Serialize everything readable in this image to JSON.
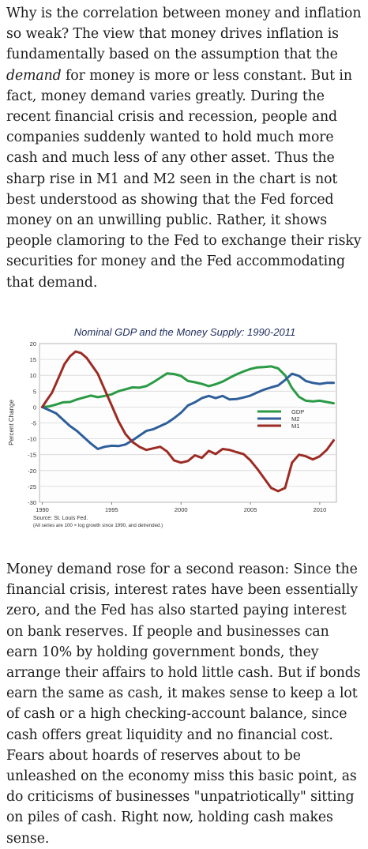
{
  "article": {
    "para1_a": "Why is the correlation between money and inflation so weak? The view that money drives inflation is fundamentally based on the assumption that the ",
    "para1_em": "demand",
    "para1_b": " for money is more or less constant. But in fact, money demand varies greatly. During the recent financial crisis and recession, people and companies suddenly wanted to hold much more cash and much less of any other asset. Thus the sharp rise in M1 and M2 seen in the chart is not best understood as showing that the Fed forced money on an unwilling public. Rather, it shows people clamoring to the Fed to exchange their risky securities for money and the Fed accommodating that demand.",
    "para2": "Money demand rose for a second reason: Since the financial crisis, interest rates have been essentially zero, and the Fed has also started paying interest on bank reserves. If people and businesses can earn 10% by holding government bonds, they arrange their affairs to hold little cash. But if bonds earn the same as cash, it makes sense to keep a lot of cash or a high checking-account balance, since cash offers great liquidity and no financial cost. Fears about hoards of reserves about to be unleashed on the economy miss this basic point, as do criticisms of businesses \"unpatriotically\" sitting on piles of cash. Right now, holding cash makes sense."
  },
  "chart_data": {
    "type": "line",
    "title": "Nominal GDP and the Money Supply: 1990-2011",
    "ylabel": "Percent Change",
    "xlabel": "",
    "source": "Source: St. Louis Fed.",
    "note": "(All series are 100 × log growth since 1990, and detrended.)",
    "xlim": [
      1989.8,
      2011.2
    ],
    "ylim": [
      -30,
      20
    ],
    "yticks": [
      "20",
      "15",
      "10",
      "5",
      "0",
      "-5",
      "-10",
      "-15",
      "-20",
      "-25",
      "-30"
    ],
    "xticks": [
      "1990",
      "1995",
      "2000",
      "2005",
      "2010"
    ],
    "grid": true,
    "legend_position": "right-center",
    "series": [
      {
        "name": "GDP",
        "color": "#2a9a45",
        "points": [
          [
            1990,
            0
          ],
          [
            1990.5,
            0.2
          ],
          [
            1991,
            0.8
          ],
          [
            1991.5,
            1.5
          ],
          [
            1992,
            1.6
          ],
          [
            1992.5,
            2.4
          ],
          [
            1993,
            3.0
          ],
          [
            1993.5,
            3.6
          ],
          [
            1994,
            3.1
          ],
          [
            1994.5,
            3.5
          ],
          [
            1995,
            4.0
          ],
          [
            1995.5,
            5.0
          ],
          [
            1996,
            5.6
          ],
          [
            1996.5,
            6.2
          ],
          [
            1997,
            6.1
          ],
          [
            1997.5,
            6.6
          ],
          [
            1998,
            7.8
          ],
          [
            1998.5,
            9.2
          ],
          [
            1999,
            10.6
          ],
          [
            1999.5,
            10.4
          ],
          [
            2000,
            9.8
          ],
          [
            2000.5,
            8.2
          ],
          [
            2001,
            7.8
          ],
          [
            2001.5,
            7.3
          ],
          [
            2002,
            6.6
          ],
          [
            2002.5,
            7.2
          ],
          [
            2003,
            8.0
          ],
          [
            2003.5,
            9.2
          ],
          [
            2004,
            10.3
          ],
          [
            2004.5,
            11.2
          ],
          [
            2005,
            12.0
          ],
          [
            2005.5,
            12.5
          ],
          [
            2006,
            12.6
          ],
          [
            2006.5,
            12.8
          ],
          [
            2007,
            12.2
          ],
          [
            2007.5,
            10.0
          ],
          [
            2008,
            6.0
          ],
          [
            2008.5,
            3.2
          ],
          [
            2009,
            2.0
          ],
          [
            2009.5,
            1.8
          ],
          [
            2010,
            2.0
          ],
          [
            2010.5,
            1.6
          ],
          [
            2011,
            1.2
          ]
        ]
      },
      {
        "name": "M2",
        "color": "#2e5f9a",
        "points": [
          [
            1990,
            0
          ],
          [
            1990.5,
            -1.0
          ],
          [
            1991,
            -2.0
          ],
          [
            1991.5,
            -4.0
          ],
          [
            1992,
            -6.0
          ],
          [
            1992.5,
            -7.5
          ],
          [
            1993,
            -9.5
          ],
          [
            1993.5,
            -11.5
          ],
          [
            1994,
            -13.2
          ],
          [
            1994.5,
            -12.5
          ],
          [
            1995,
            -12.2
          ],
          [
            1995.5,
            -12.3
          ],
          [
            1996,
            -11.8
          ],
          [
            1996.5,
            -10.5
          ],
          [
            1997,
            -9.0
          ],
          [
            1997.5,
            -7.5
          ],
          [
            1998,
            -7.0
          ],
          [
            1998.5,
            -6.0
          ],
          [
            1999,
            -5.0
          ],
          [
            1999.5,
            -3.5
          ],
          [
            2000,
            -1.8
          ],
          [
            2000.5,
            0.5
          ],
          [
            2001,
            1.5
          ],
          [
            2001.5,
            2.8
          ],
          [
            2002,
            3.5
          ],
          [
            2002.5,
            2.8
          ],
          [
            2003,
            3.5
          ],
          [
            2003.5,
            2.4
          ],
          [
            2004,
            2.5
          ],
          [
            2004.5,
            3.0
          ],
          [
            2005,
            3.6
          ],
          [
            2005.5,
            4.6
          ],
          [
            2006,
            5.5
          ],
          [
            2006.5,
            6.2
          ],
          [
            2007,
            6.8
          ],
          [
            2007.5,
            8.5
          ],
          [
            2008,
            10.5
          ],
          [
            2008.5,
            9.8
          ],
          [
            2009,
            8.2
          ],
          [
            2009.5,
            7.6
          ],
          [
            2010,
            7.3
          ],
          [
            2010.5,
            7.6
          ],
          [
            2011,
            7.6
          ]
        ]
      },
      {
        "name": "M1",
        "color": "#9c2b24",
        "points": [
          [
            1990,
            0
          ],
          [
            1990.3,
            2.0
          ],
          [
            1990.7,
            4.5
          ],
          [
            1991,
            7.5
          ],
          [
            1991.3,
            10.5
          ],
          [
            1991.6,
            13.5
          ],
          [
            1992,
            16.0
          ],
          [
            1992.4,
            17.5
          ],
          [
            1992.8,
            17.0
          ],
          [
            1993.2,
            15.5
          ],
          [
            1993.6,
            13.0
          ],
          [
            1994,
            10.5
          ],
          [
            1994.5,
            5.5
          ],
          [
            1995,
            0.5
          ],
          [
            1995.5,
            -4.5
          ],
          [
            1996,
            -8.5
          ],
          [
            1996.5,
            -11.0
          ],
          [
            1997,
            -12.5
          ],
          [
            1997.5,
            -13.5
          ],
          [
            1998,
            -13.0
          ],
          [
            1998.5,
            -12.5
          ],
          [
            1999,
            -14.0
          ],
          [
            1999.5,
            -16.8
          ],
          [
            2000,
            -17.5
          ],
          [
            2000.5,
            -17.0
          ],
          [
            2001,
            -15.2
          ],
          [
            2001.5,
            -16.0
          ],
          [
            2002,
            -13.8
          ],
          [
            2002.5,
            -14.8
          ],
          [
            2003,
            -13.2
          ],
          [
            2003.5,
            -13.5
          ],
          [
            2004,
            -14.2
          ],
          [
            2004.5,
            -14.8
          ],
          [
            2005,
            -16.8
          ],
          [
            2005.5,
            -19.5
          ],
          [
            2006,
            -22.5
          ],
          [
            2006.5,
            -25.5
          ],
          [
            2007,
            -26.5
          ],
          [
            2007.5,
            -25.5
          ],
          [
            2008,
            -17.5
          ],
          [
            2008.5,
            -15.0
          ],
          [
            2009,
            -15.5
          ],
          [
            2009.5,
            -16.5
          ],
          [
            2010,
            -15.5
          ],
          [
            2010.5,
            -13.5
          ],
          [
            2011,
            -10.5
          ]
        ]
      }
    ]
  }
}
